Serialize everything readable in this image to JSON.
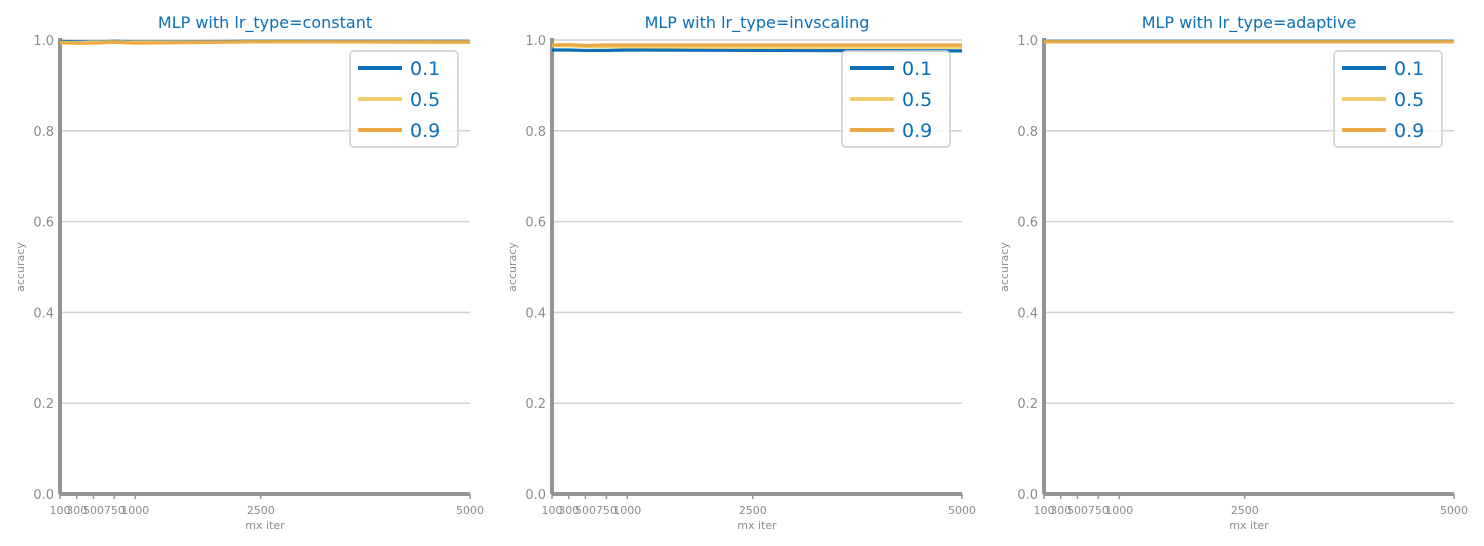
{
  "chart_data": [
    {
      "type": "line",
      "title": "MLP with lr_type=constant",
      "xlabel": "mx iter",
      "ylabel": "accuracy",
      "ylim": [
        0.0,
        1.0
      ],
      "xlim": [
        100,
        5000
      ],
      "xticks": [
        100,
        300,
        500,
        750,
        1000,
        2500,
        5000
      ],
      "yticks": [
        "0.0",
        "0.2",
        "0.4",
        "0.6",
        "0.8",
        "1.0"
      ],
      "grid": "y",
      "legend": "top-right",
      "x": [
        100,
        300,
        500,
        750,
        1000,
        2500,
        5000
      ],
      "series": [
        {
          "name": "0.1",
          "color": "#0a6fb4",
          "values": [
            0.997,
            0.996,
            0.996,
            0.997,
            0.996,
            0.997,
            0.997
          ]
        },
        {
          "name": "0.5",
          "color": "#f0d06e",
          "values": [
            0.995,
            0.994,
            0.995,
            0.996,
            0.995,
            0.996,
            0.996
          ]
        },
        {
          "name": "0.9",
          "color": "#eaaa44",
          "values": [
            0.994,
            0.993,
            0.993,
            0.995,
            0.993,
            0.996,
            0.995
          ]
        }
      ]
    },
    {
      "type": "line",
      "title": "MLP with lr_type=invscaling",
      "xlabel": "mx iter",
      "ylabel": "accuracy",
      "ylim": [
        0.0,
        1.0
      ],
      "xlim": [
        100,
        5000
      ],
      "xticks": [
        100,
        300,
        500,
        750,
        1000,
        2500,
        5000
      ],
      "yticks": [
        "0.0",
        "0.2",
        "0.4",
        "0.6",
        "0.8",
        "1.0"
      ],
      "grid": "y",
      "legend": "top-right",
      "x": [
        100,
        300,
        500,
        750,
        1000,
        2500,
        5000
      ],
      "series": [
        {
          "name": "0.1",
          "color": "#0a6fb4",
          "values": [
            0.978,
            0.978,
            0.977,
            0.977,
            0.978,
            0.977,
            0.976
          ]
        },
        {
          "name": "0.5",
          "color": "#f0d06e",
          "values": [
            0.988,
            0.987,
            0.986,
            0.985,
            0.985,
            0.984,
            0.984
          ]
        },
        {
          "name": "0.9",
          "color": "#eaaa44",
          "values": [
            0.989,
            0.99,
            0.988,
            0.989,
            0.989,
            0.989,
            0.989
          ]
        }
      ]
    },
    {
      "type": "line",
      "title": "MLP with lr_type=adaptive",
      "xlabel": "mx iter",
      "ylabel": "accuracy",
      "ylim": [
        0.0,
        1.0
      ],
      "xlim": [
        100,
        5000
      ],
      "xticks": [
        100,
        300,
        500,
        750,
        1000,
        2500,
        5000
      ],
      "yticks": [
        "0.0",
        "0.2",
        "0.4",
        "0.6",
        "0.8",
        "1.0"
      ],
      "grid": "y",
      "legend": "top-right",
      "x": [
        100,
        300,
        500,
        750,
        1000,
        2500,
        5000
      ],
      "series": [
        {
          "name": "0.1",
          "color": "#0a6fb4",
          "values": [
            0.997,
            0.997,
            0.997,
            0.997,
            0.997,
            0.997,
            0.997
          ]
        },
        {
          "name": "0.5",
          "color": "#f0d06e",
          "values": [
            0.996,
            0.996,
            0.996,
            0.996,
            0.996,
            0.996,
            0.996
          ]
        },
        {
          "name": "0.9",
          "color": "#eaaa44",
          "values": [
            0.996,
            0.996,
            0.996,
            0.996,
            0.996,
            0.996,
            0.996
          ]
        }
      ]
    }
  ]
}
